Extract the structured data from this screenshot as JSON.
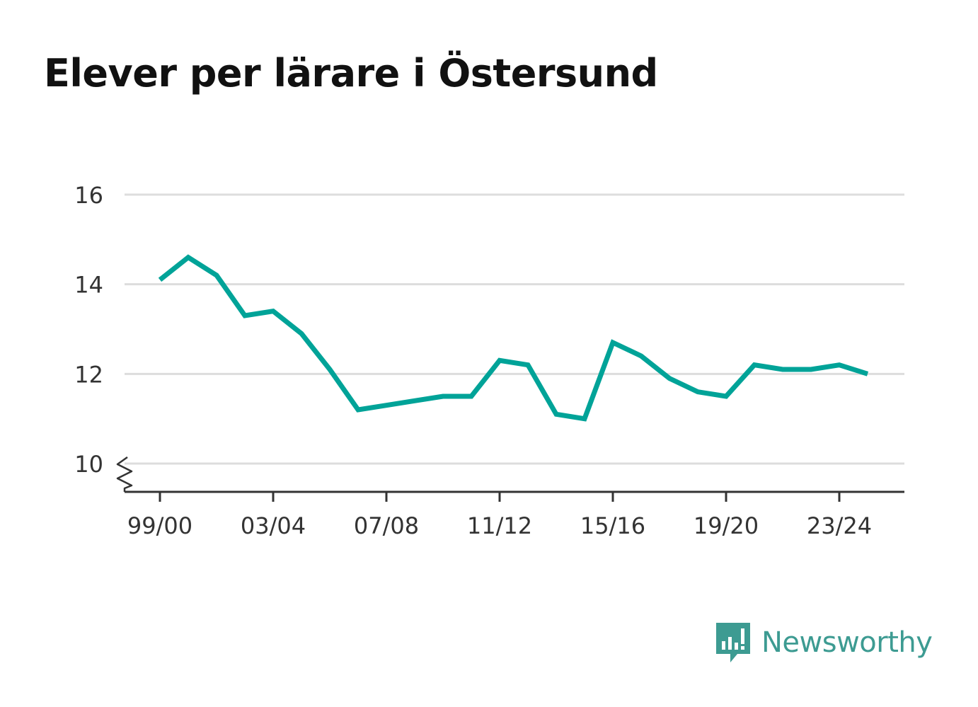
{
  "chart_data": {
    "type": "line",
    "title": "Elever per lärare i Östersund",
    "xlabel": "",
    "ylabel": "",
    "x": [
      "99/00",
      "00/01",
      "01/02",
      "02/03",
      "03/04",
      "04/05",
      "05/06",
      "06/07",
      "07/08",
      "08/09",
      "09/10",
      "10/11",
      "11/12",
      "12/13",
      "13/14",
      "14/15",
      "15/16",
      "16/17",
      "17/18",
      "18/19",
      "19/20",
      "20/21",
      "21/22",
      "22/23",
      "23/24",
      "24/25"
    ],
    "x_tick_labels": [
      "99/00",
      "03/04",
      "07/08",
      "11/12",
      "15/16",
      "19/20",
      "23/24"
    ],
    "series": [
      {
        "values": [
          14.1,
          14.6,
          14.2,
          13.3,
          13.4,
          12.9,
          12.1,
          11.2,
          11.3,
          11.4,
          11.5,
          11.5,
          12.3,
          12.2,
          11.1,
          11.0,
          12.7,
          12.4,
          11.9,
          11.6,
          11.5,
          12.2,
          12.1,
          12.1,
          12.2,
          12.0
        ],
        "color": "#00a398"
      }
    ],
    "y_ticks": [
      10,
      12,
      14,
      16
    ],
    "ylim": [
      10,
      16
    ],
    "y_axis_break": true,
    "grid": true,
    "gridline_color": "#dddddd"
  },
  "brand": {
    "name": "Newsworthy",
    "color": "#3d9b92",
    "icon": "newsworthy-logo-icon"
  }
}
